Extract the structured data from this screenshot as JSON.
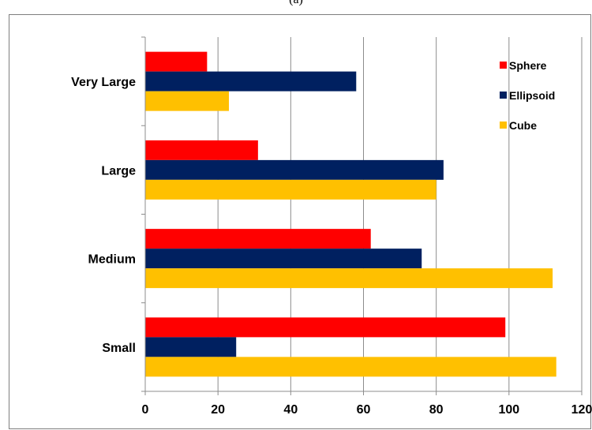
{
  "figure": {
    "panel_label": "(a)"
  },
  "chart_data": {
    "type": "bar",
    "orientation": "horizontal",
    "categories": [
      "Very Large",
      "Large",
      "Medium",
      "Small"
    ],
    "series": [
      {
        "name": "Sphere",
        "color": "#ff0000",
        "values": [
          17,
          31,
          62,
          99
        ]
      },
      {
        "name": "Ellipsoid",
        "color": "#002060",
        "values": [
          58,
          82,
          76,
          25
        ]
      },
      {
        "name": "Cube",
        "color": "#ffc000",
        "values": [
          23,
          80,
          112,
          113
        ]
      }
    ],
    "xlim": [
      0,
      120
    ],
    "xticks": [
      0,
      20,
      40,
      60,
      80,
      100,
      120
    ],
    "xtick_labels": [
      "0",
      "20",
      "40",
      "60",
      "80",
      "100",
      "120"
    ],
    "grid": "vertical",
    "legend_position": "top-right",
    "title": "",
    "xlabel": "",
    "ylabel": ""
  }
}
